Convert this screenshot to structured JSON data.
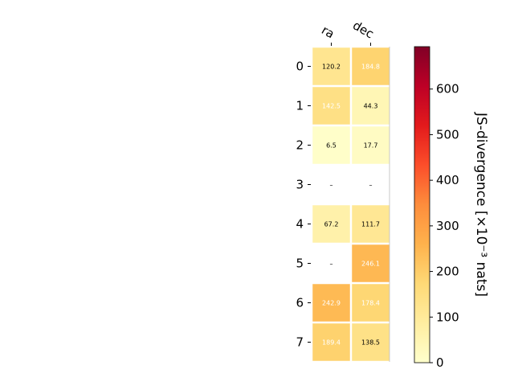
{
  "chart_data": {
    "type": "heatmap",
    "columns": [
      "ra",
      "dec"
    ],
    "rows": [
      "0",
      "1",
      "2",
      "3",
      "4",
      "5",
      "6",
      "7"
    ],
    "values": [
      [
        120.2,
        184.8
      ],
      [
        142.5,
        44.3
      ],
      [
        6.5,
        17.7
      ],
      [
        null,
        null
      ],
      [
        67.2,
        111.7
      ],
      [
        null,
        246.1
      ],
      [
        242.9,
        178.4
      ],
      [
        189.4,
        138.5
      ]
    ],
    "cell_labels": [
      [
        "120.2",
        "184.8"
      ],
      [
        "142.5",
        "44.3"
      ],
      [
        "6.5",
        "17.7"
      ],
      [
        "–",
        "–"
      ],
      [
        "67.2",
        "111.7"
      ],
      [
        "–",
        "246.1"
      ],
      [
        "242.9",
        "178.4"
      ],
      [
        "189.4",
        "138.5"
      ]
    ],
    "colorbar": {
      "label": "JS-divergence [×10⁻³ nats]",
      "range": [
        0,
        693
      ],
      "ticks": [
        0,
        100,
        200,
        300,
        400,
        500,
        600
      ],
      "tick_labels": [
        "0",
        "100",
        "200",
        "300",
        "400",
        "500",
        "600"
      ],
      "colormap": "YlOrRd"
    },
    "grid": false,
    "legend": "right"
  }
}
